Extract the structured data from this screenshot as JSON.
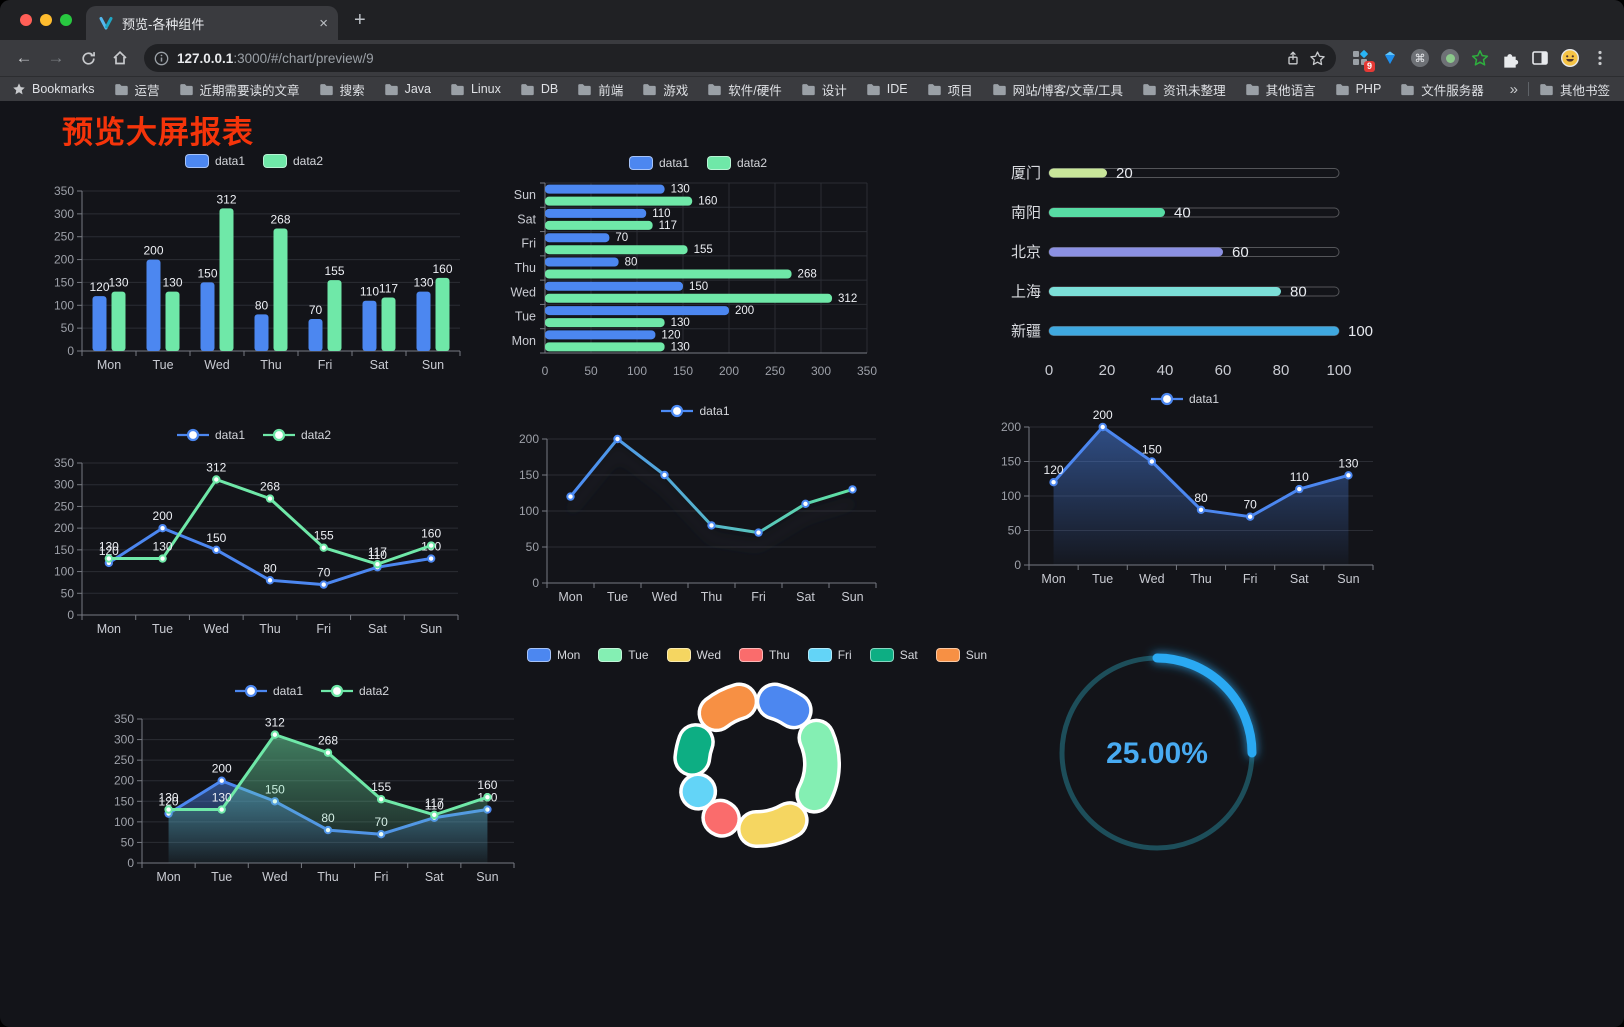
{
  "browser": {
    "tab": {
      "title": "预览-各种组件",
      "close": "×",
      "new_tab": "+"
    },
    "address": {
      "host": "127.0.0.1",
      "path": ":3000/#/chart/preview/9"
    },
    "extensions_badge": "9",
    "bookmarks_label": "Bookmarks",
    "bookmarks": [
      "运营",
      "近期需要读的文章",
      "搜索",
      "Java",
      "Linux",
      "DB",
      "前端",
      "游戏",
      "软件/硬件",
      "设计",
      "IDE",
      "项目",
      "网站/博客/文章/工具",
      "资讯未整理",
      "其他语言",
      "PHP",
      "文件服务器"
    ],
    "bookmarks_overflow": "»",
    "other_bookmarks": "其他书签"
  },
  "page": {
    "title": "预览大屏报表"
  },
  "colors": {
    "blue": "#4C87F0",
    "green": "#6FE8A8",
    "title_red": "#F5340A",
    "gauge_blue": "#2AA9F2"
  },
  "chart_data": [
    {
      "id": "bar-grouped-vertical",
      "type": "bar",
      "title": "",
      "xlabel": "",
      "ylabel": "",
      "categories": [
        "Mon",
        "Tue",
        "Wed",
        "Thu",
        "Fri",
        "Sat",
        "Sun"
      ],
      "series": [
        {
          "name": "data1",
          "color": "#4C87F0",
          "values": [
            120,
            200,
            150,
            80,
            70,
            110,
            130
          ]
        },
        {
          "name": "data2",
          "color": "#6FE8A8",
          "values": [
            130,
            130,
            312,
            268,
            155,
            117,
            160
          ]
        }
      ],
      "ylim": [
        0,
        350
      ],
      "ytick": 50,
      "legend_position": "top",
      "grid": true,
      "value_labels": true
    },
    {
      "id": "bar-grouped-horizontal",
      "type": "bar-horizontal",
      "categories": [
        "Mon",
        "Tue",
        "Wed",
        "Thu",
        "Fri",
        "Sat",
        "Sun"
      ],
      "series": [
        {
          "name": "data1",
          "color": "#4C87F0",
          "values": [
            120,
            200,
            150,
            80,
            70,
            110,
            130
          ]
        },
        {
          "name": "data2",
          "color": "#6FE8A8",
          "values": [
            130,
            130,
            312,
            268,
            155,
            117,
            160
          ]
        }
      ],
      "xlim": [
        0,
        350
      ],
      "xtick": 50,
      "legend_position": "top",
      "grid": true,
      "value_labels": true
    },
    {
      "id": "city-progress",
      "type": "progress",
      "items": [
        {
          "label": "厦门",
          "value": 20,
          "color": "#C9E69A"
        },
        {
          "label": "南阳",
          "value": 40,
          "color": "#57DBA4"
        },
        {
          "label": "北京",
          "value": 60,
          "color": "#8B90E2"
        },
        {
          "label": "上海",
          "value": 80,
          "color": "#7CDFD8"
        },
        {
          "label": "新疆",
          "value": 100,
          "color": "#3FA8DF"
        }
      ],
      "max": 100,
      "xticks": [
        0,
        20,
        40,
        60,
        80,
        100
      ]
    },
    {
      "id": "line-two-series",
      "type": "line",
      "categories": [
        "Mon",
        "Tue",
        "Wed",
        "Thu",
        "Fri",
        "Sat",
        "Sun"
      ],
      "series": [
        {
          "name": "data1",
          "color": "#4C87F0",
          "values": [
            120,
            200,
            150,
            80,
            70,
            110,
            130
          ],
          "area": false
        },
        {
          "name": "data2",
          "color": "#6FE8A8",
          "values": [
            130,
            130,
            312,
            268,
            155,
            117,
            160
          ],
          "area": false
        }
      ],
      "ylim": [
        0,
        350
      ],
      "ytick": 50,
      "legend_position": "top",
      "value_labels": true
    },
    {
      "id": "line-gradient",
      "type": "line",
      "categories": [
        "Mon",
        "Tue",
        "Wed",
        "Thu",
        "Fri",
        "Sat",
        "Sun"
      ],
      "series": [
        {
          "name": "data1",
          "color": "#4C8BF5",
          "gradient": [
            "#4C8BF5",
            "#5FE3A1"
          ],
          "values": [
            120,
            200,
            150,
            80,
            70,
            110,
            130
          ],
          "area": false,
          "shadow": true
        }
      ],
      "ylim": [
        0,
        200
      ],
      "ytick": 50,
      "legend_position": "top",
      "value_labels": false
    },
    {
      "id": "line-area-single",
      "type": "line",
      "categories": [
        "Mon",
        "Tue",
        "Wed",
        "Thu",
        "Fri",
        "Sat",
        "Sun"
      ],
      "series": [
        {
          "name": "data1",
          "color": "#4C87F0",
          "values": [
            120,
            200,
            150,
            80,
            70,
            110,
            130
          ],
          "area": true
        }
      ],
      "ylim": [
        0,
        200
      ],
      "ytick": 50,
      "legend_position": "top",
      "value_labels": true
    },
    {
      "id": "line-two-area",
      "type": "line",
      "categories": [
        "Mon",
        "Tue",
        "Wed",
        "Thu",
        "Fri",
        "Sat",
        "Sun"
      ],
      "series": [
        {
          "name": "data1",
          "color": "#4C87F0",
          "values": [
            120,
            200,
            150,
            80,
            70,
            110,
            130
          ],
          "area": true
        },
        {
          "name": "data2",
          "color": "#6FE8A8",
          "values": [
            130,
            130,
            312,
            268,
            155,
            117,
            160
          ],
          "area": true
        }
      ],
      "ylim": [
        0,
        350
      ],
      "ytick": 50,
      "legend_position": "top",
      "value_labels": true
    },
    {
      "id": "donut-week",
      "type": "pie",
      "categories": [
        "Mon",
        "Tue",
        "Wed",
        "Thu",
        "Fri",
        "Sat",
        "Sun"
      ],
      "values": [
        120,
        200,
        150,
        80,
        70,
        110,
        130
      ],
      "colors": [
        "#4C87F0",
        "#84EFB3",
        "#F5D661",
        "#FA6C6C",
        "#63D4F7",
        "#0DAE83",
        "#F79044"
      ],
      "legend_position": "top",
      "inner_radius": 0.6
    },
    {
      "id": "gauge-percent",
      "type": "gauge",
      "value": 25,
      "max": 100,
      "label": "25.00%",
      "color": "#2AA9F2",
      "track_color": "#1D4E5A",
      "text_color": "#48ABF2"
    }
  ]
}
